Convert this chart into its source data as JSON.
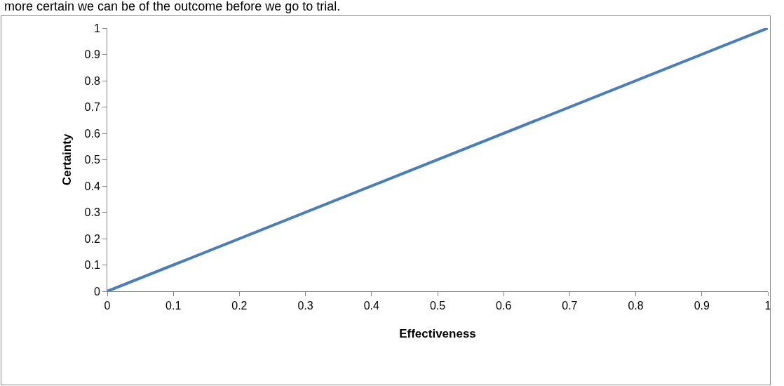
{
  "chart_data": {
    "type": "line",
    "xlabel": "Effectiveness",
    "ylabel": "Certainty",
    "annotations": [
      "more certain we can be of the outcome before we go to trial."
    ],
    "x": [
      0,
      1
    ],
    "series": [
      {
        "color": "#4a7ebb",
        "values": [
          0,
          1
        ]
      }
    ],
    "xlim": [
      0,
      1
    ],
    "ylim": [
      0,
      1
    ],
    "xticks": [
      0,
      0.1,
      0.2,
      0.3,
      0.4,
      0.5,
      0.6,
      0.7,
      0.8,
      0.9,
      1
    ],
    "yticks": [
      0,
      0.1,
      0.2,
      0.3,
      0.4,
      0.5,
      0.6,
      0.7,
      0.8,
      0.9,
      1
    ],
    "grid": false,
    "legend": false,
    "marker": "none",
    "line_style": "solid"
  }
}
